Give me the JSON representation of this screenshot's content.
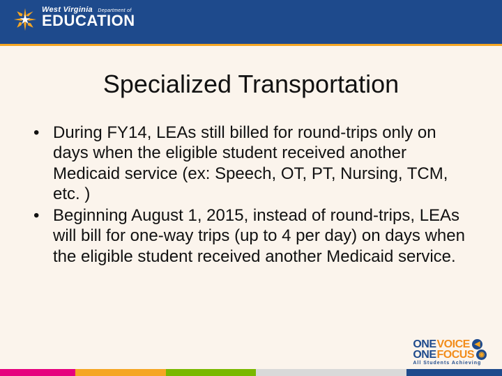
{
  "header": {
    "background_color": "#1e4a8c",
    "underline_color": "#f5a623",
    "logo": {
      "state_line": "West Virginia",
      "dept_line": "Department of",
      "main_line": "EDUCATION",
      "star_color": "#f5a623",
      "text_color": "#ffffff"
    }
  },
  "slide": {
    "background_color": "#fbf4ec",
    "title": "Specialized Transportation",
    "title_fontsize": 36,
    "body_fontsize": 24,
    "bullets": [
      "During FY14, LEAs still billed for round-trips only on days when the eligible student received another Medicaid service (ex: Speech, OT, PT, Nursing, TCM, etc. )",
      "Beginning August 1, 2015, instead of round-trips, LEAs will bill for one-way trips (up to 4 per day) on days when the eligible student received another Medicaid service."
    ]
  },
  "footer": {
    "stripe_segments": [
      {
        "color": "#e6007e",
        "width_pct": 15
      },
      {
        "color": "#f5a623",
        "width_pct": 18
      },
      {
        "color": "#7ab800",
        "width_pct": 18
      },
      {
        "color": "#d9d9d9",
        "width_pct": 30
      },
      {
        "color": "#1e4a8c",
        "width_pct": 19
      }
    ],
    "logo": {
      "one": "ONE",
      "word1": "VOICE",
      "word2": "FOCUS",
      "tagline": "All Students Achieving",
      "one_color": "#1e4a8c",
      "word_color": "#f28c1a",
      "circle_bg": "#1e4a8c",
      "circle_fg": "#f5a623"
    }
  }
}
